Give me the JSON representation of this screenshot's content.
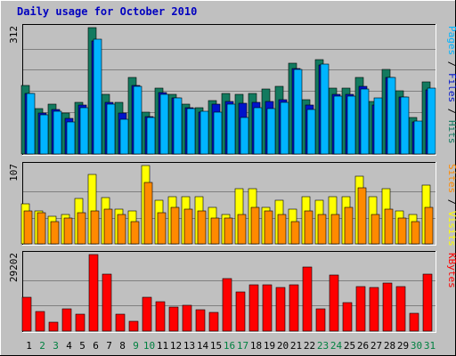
{
  "chart_data": {
    "type": "bar",
    "title": "Daily usage for October 2010",
    "colors": {
      "hits": "#127a5f",
      "files": "#0014cc",
      "pages": "#00b4ff",
      "visits": "#ffff00",
      "sites": "#ff8a00",
      "kbytes": "#ff0000",
      "weekend_day": "#008040",
      "weekday_day": "#000000",
      "title": "#0000c0"
    },
    "categories": [
      "1",
      "2",
      "3",
      "4",
      "5",
      "6",
      "7",
      "8",
      "9",
      "10",
      "11",
      "12",
      "13",
      "14",
      "15",
      "16",
      "17",
      "18",
      "19",
      "20",
      "21",
      "22",
      "23",
      "24",
      "25",
      "26",
      "27",
      "28",
      "29",
      "30",
      "31"
    ],
    "weekend_days": [
      "2",
      "3",
      "9",
      "10",
      "16",
      "17",
      "23",
      "24",
      "30",
      "31"
    ],
    "panels": [
      {
        "id": "hits_files_pages",
        "max_label": "312",
        "ylim": [
          0,
          312
        ],
        "legend": [
          {
            "text": "Pages",
            "color": "#00b4ff"
          },
          {
            "text": " / ",
            "color": "#000000"
          },
          {
            "text": "Files",
            "color": "#0014cc"
          },
          {
            "text": " / ",
            "color": "#000000"
          },
          {
            "text": "Hits",
            "color": "#127a5f"
          }
        ],
        "series": [
          {
            "name": "Hits",
            "color": "#127a5f",
            "values": [
              170,
              112,
              122,
              100,
              128,
              312,
              147,
              128,
              188,
              104,
              163,
              148,
              124,
              114,
              131,
              150,
              147,
              150,
              160,
              168,
              225,
              133,
              232,
              162,
              162,
              190,
              130,
              209,
              157,
              90,
              178
            ]
          },
          {
            "name": "Files",
            "color": "#0014cc",
            "values": [
              150,
              100,
              110,
              88,
              120,
              280,
              128,
              100,
              170,
              92,
              152,
              138,
              114,
              104,
              124,
              130,
              125,
              128,
              130,
              135,
              210,
              120,
              220,
              148,
              148,
              168,
              120,
              190,
              140,
              80,
              158
            ]
          },
          {
            "name": "Pages",
            "color": "#00b4ff",
            "values": [
              150,
              97,
              106,
              80,
              114,
              283,
              122,
              86,
              168,
              90,
              148,
              138,
              112,
              105,
              103,
              124,
              90,
              114,
              113,
              128,
              209,
              110,
              221,
              142,
              142,
              160,
              138,
              189,
              140,
              82,
              162
            ]
          }
        ]
      },
      {
        "id": "visits_sites",
        "max_label": "107",
        "ylim": [
          0,
          107
        ],
        "legend": [
          {
            "text": "Sites",
            "color": "#ff8a00"
          },
          {
            "text": " / ",
            "color": "#000000"
          },
          {
            "text": "Visits",
            "color": "#ffff00"
          }
        ],
        "series": [
          {
            "name": "Visits",
            "color": "#ffff00",
            "values": [
              55,
              45,
              38,
              40,
              62,
              95,
              63,
              48,
              45,
              107,
              60,
              65,
              65,
              65,
              50,
              40,
              75,
              75,
              50,
              60,
              48,
              65,
              60,
              65,
              65,
              93,
              65,
              75,
              45,
              40,
              80
            ]
          },
          {
            "name": "Sites",
            "color": "#ff8a00",
            "values": [
              45,
              43,
              30,
              35,
              42,
              45,
              48,
              40,
              30,
              84,
              42,
              50,
              48,
              45,
              35,
              35,
              40,
              50,
              45,
              40,
              30,
              45,
              40,
              40,
              50,
              77,
              40,
              48,
              35,
              30,
              50
            ]
          }
        ]
      },
      {
        "id": "kbytes",
        "max_label": "29202",
        "ylim": [
          0,
          29202
        ],
        "legend": [
          {
            "text": "KBytes",
            "color": "#ff0000"
          }
        ],
        "series": [
          {
            "name": "KBytes",
            "color": "#ff0000",
            "values": [
              13000,
              7500,
              3500,
              8500,
              6500,
              29202,
              21800,
              6500,
              3800,
              12800,
              11200,
              9000,
              10000,
              8000,
              7300,
              20000,
              14800,
              17500,
              17500,
              16500,
              17500,
              24300,
              8500,
              21500,
              11000,
              17000,
              16500,
              18500,
              17000,
              6800,
              21600
            ]
          }
        ]
      }
    ]
  }
}
